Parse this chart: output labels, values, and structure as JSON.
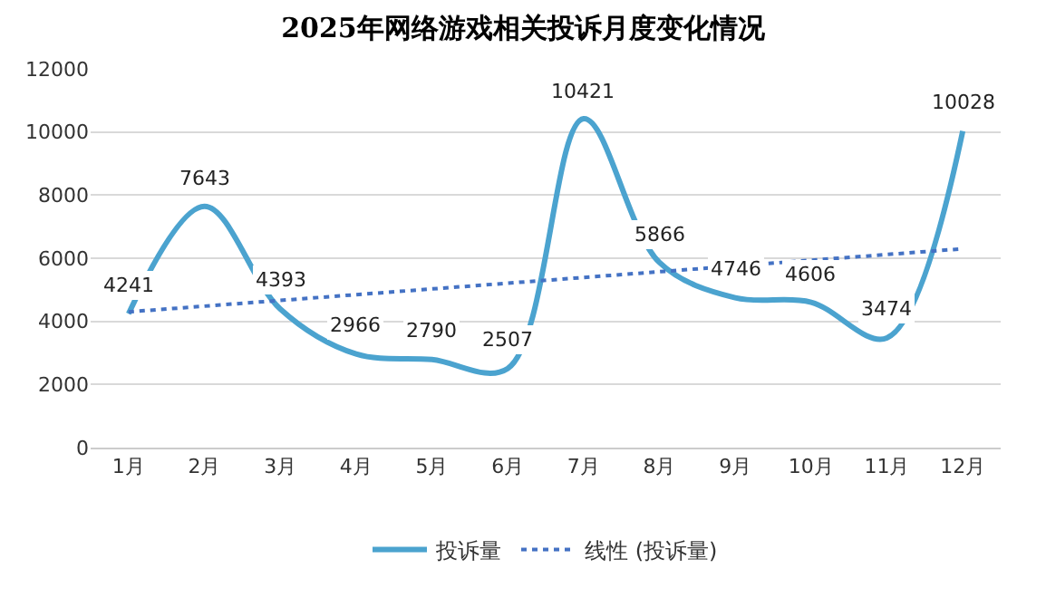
{
  "chart_data": {
    "type": "line",
    "title": "2025年网络游戏相关投诉月度变化情况",
    "categories": [
      "1月",
      "2月",
      "3月",
      "4月",
      "5月",
      "6月",
      "7月",
      "8月",
      "9月",
      "10月",
      "11月",
      "12月"
    ],
    "series": [
      {
        "name": "投诉量",
        "color": "#4ba3cf",
        "values": [
          4241,
          7643,
          4393,
          2966,
          2790,
          2507,
          10421,
          5866,
          4746,
          4606,
          3474,
          10028
        ],
        "value_labels": [
          "4241",
          "7643",
          "4393",
          "2966",
          "2790",
          "2507",
          "10421",
          "5866",
          "4746",
          "4606",
          "3474",
          "10028"
        ]
      },
      {
        "name": "线性 (投诉量)",
        "type": "line",
        "color": "#4472c4",
        "line_style": "dotted",
        "x": [
          "1月",
          "12月"
        ],
        "values": [
          4300,
          6300
        ]
      }
    ],
    "ylim": [
      0,
      12000
    ],
    "yticks": [
      0,
      2000,
      4000,
      6000,
      8000,
      10000,
      12000
    ],
    "grid": "y",
    "legend": "bottom",
    "line_style": "solid",
    "marker": "none"
  }
}
